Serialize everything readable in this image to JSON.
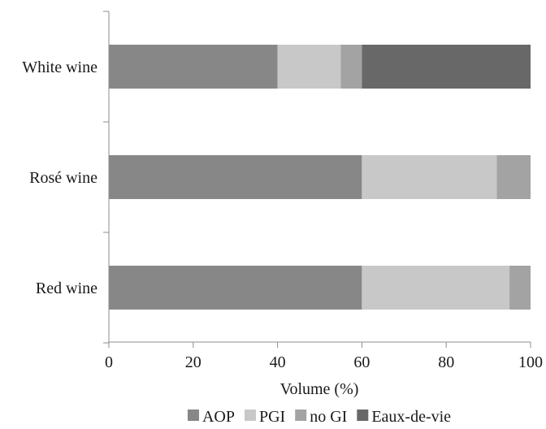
{
  "chart_data": {
    "type": "bar",
    "orientation": "horizontal",
    "stacked": true,
    "categories": [
      "White wine",
      "Rosé wine",
      "Red wine"
    ],
    "series": [
      {
        "name": "AOP",
        "color": "#878787",
        "values": [
          40,
          60,
          60
        ]
      },
      {
        "name": "PGI",
        "color": "#c8c8c8",
        "values": [
          15,
          32,
          35
        ]
      },
      {
        "name": "no GI",
        "color": "#a3a3a3",
        "values": [
          5,
          8,
          5
        ]
      },
      {
        "name": "Eaux-de-vie",
        "color": "#686868",
        "values": [
          40,
          0,
          0
        ]
      }
    ],
    "xlabel": "Volume (%)",
    "ylabel": "",
    "title": "",
    "xlim": [
      0,
      100
    ],
    "xticks": [
      "0",
      "20",
      "40",
      "60",
      "80",
      "100"
    ],
    "grid": false,
    "legend_position": "bottom"
  }
}
